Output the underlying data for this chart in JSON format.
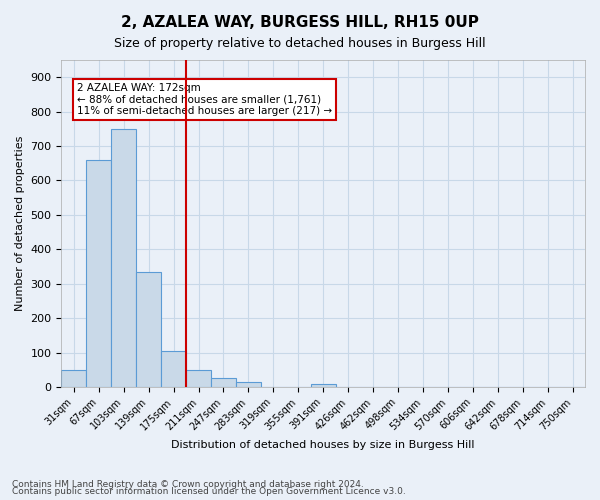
{
  "title": "2, AZALEA WAY, BURGESS HILL, RH15 0UP",
  "subtitle": "Size of property relative to detached houses in Burgess Hill",
  "xlabel": "Distribution of detached houses by size in Burgess Hill",
  "ylabel": "Number of detached properties",
  "footnote1": "Contains HM Land Registry data © Crown copyright and database right 2024.",
  "footnote2": "Contains public sector information licensed under the Open Government Licence v3.0.",
  "bin_labels": [
    "31sqm",
    "67sqm",
    "103sqm",
    "139sqm",
    "175sqm",
    "211sqm",
    "247sqm",
    "283sqm",
    "319sqm",
    "355sqm",
    "391sqm",
    "426sqm",
    "462sqm",
    "498sqm",
    "534sqm",
    "570sqm",
    "606sqm",
    "642sqm",
    "678sqm",
    "714sqm",
    "750sqm"
  ],
  "bar_heights": [
    50,
    660,
    750,
    335,
    105,
    50,
    25,
    15,
    0,
    0,
    10,
    0,
    0,
    0,
    0,
    0,
    0,
    0,
    0,
    0,
    0
  ],
  "bar_color": "#c9d9e8",
  "bar_edge_color": "#5b9bd5",
  "grid_color": "#c8d8e8",
  "vline_x": 4.5,
  "vline_color": "#cc0000",
  "annotation_text": "2 AZALEA WAY: 172sqm\n← 88% of detached houses are smaller (1,761)\n11% of semi-detached houses are larger (217) →",
  "annotation_box_color": "#ffffff",
  "annotation_box_edge": "#cc0000",
  "ylim": [
    0,
    950
  ],
  "yticks": [
    0,
    100,
    200,
    300,
    400,
    500,
    600,
    700,
    800,
    900
  ],
  "background_color": "#eaf0f8",
  "plot_background": "#eaf0f8"
}
